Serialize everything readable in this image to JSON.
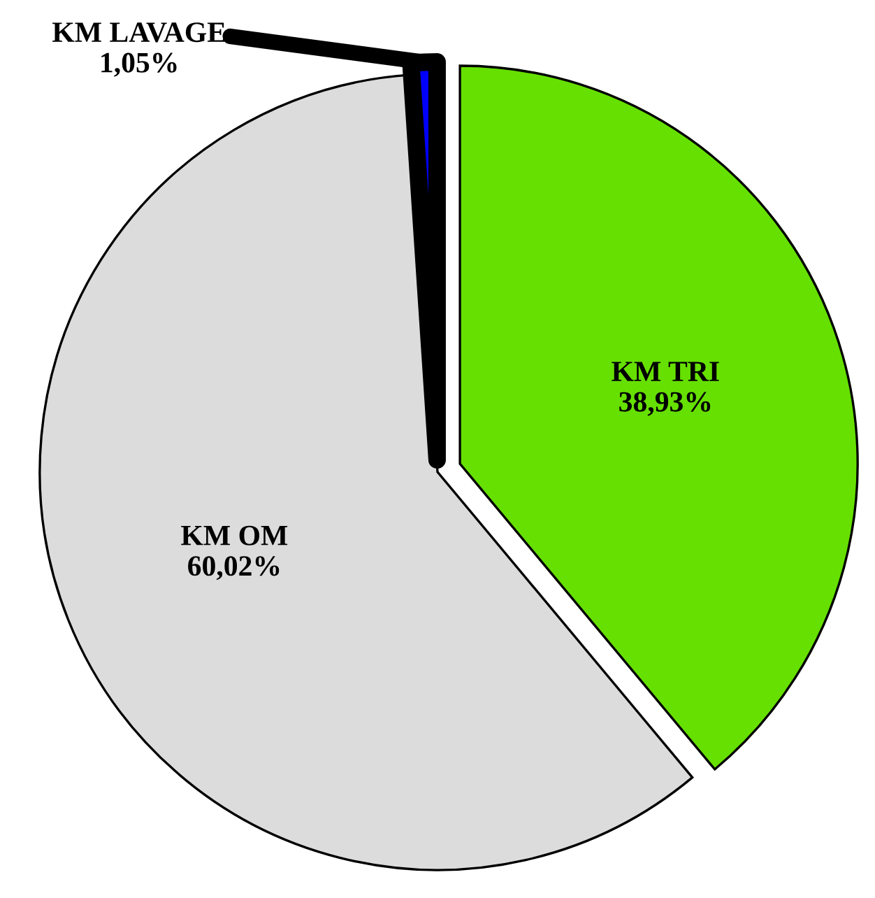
{
  "chart_data": {
    "type": "pie",
    "categories": [
      "KM TRI",
      "KM OM",
      "KM LAVAGE"
    ],
    "values": [
      38.93,
      60.02,
      1.05
    ],
    "colors": [
      "#66e000",
      "#dcdcdc",
      "#0000ff"
    ],
    "value_labels": [
      "38,93%",
      "60,02%",
      "1,05%"
    ],
    "legend": false
  }
}
